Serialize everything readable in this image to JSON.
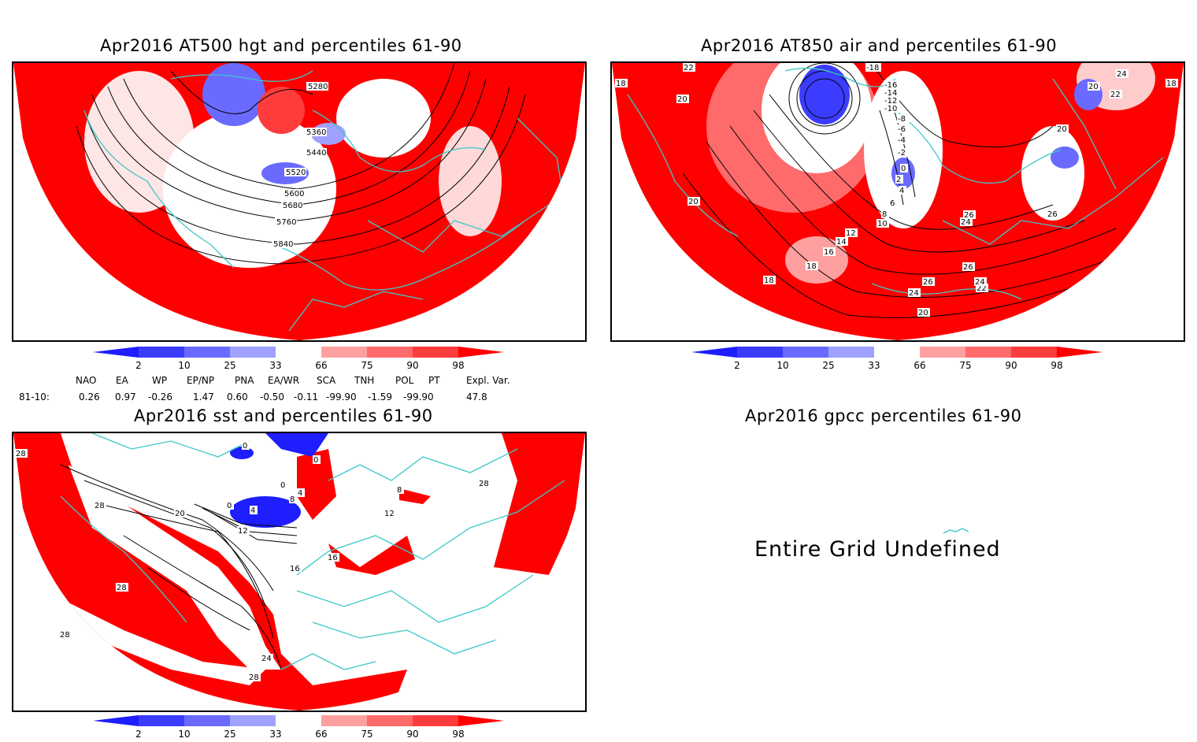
{
  "panels": {
    "hgt": {
      "title": "Apr2016 AT500 hgt and percentiles 61-90",
      "contour_labels": [
        "5280",
        "5360",
        "5440",
        "5520",
        "5600",
        "5680",
        "5760",
        "5840"
      ]
    },
    "air": {
      "title": "Apr2016 AT850 air and percentiles 61-90",
      "contour_labels": [
        "-18",
        "-16",
        "-14",
        "-12",
        "-10",
        "-8",
        "-6",
        "-4",
        "-2",
        "0",
        "2",
        "4",
        "6",
        "8",
        "10",
        "12",
        "14",
        "16",
        "18",
        "18",
        "20",
        "20",
        "20",
        "20",
        "22",
        "22",
        "22",
        "24",
        "24",
        "24",
        "26",
        "26",
        "26",
        "26",
        "18",
        "18",
        "24",
        "20"
      ]
    },
    "sst": {
      "title": "Apr2016 sst and percentiles 61-90",
      "contour_labels": [
        "28",
        "28",
        "28",
        "28",
        "20",
        "4",
        "0",
        "12",
        "16",
        "0",
        "4",
        "8",
        "0",
        "0",
        "16",
        "8",
        "12",
        "24",
        "28",
        "28"
      ]
    },
    "gpcc": {
      "title": "Apr2016 gpcc percentiles 61-90",
      "message": "Entire Grid Undefined"
    }
  },
  "colorbar": {
    "ticks": [
      "2",
      "10",
      "25",
      "33",
      "66",
      "75",
      "90",
      "98"
    ],
    "colors": [
      "#1e1eff",
      "#3c3cff",
      "#6a6aff",
      "#a0a0ff",
      "#ffffff",
      "#ffa0a0",
      "#ff6a6a",
      "#ff3c3c",
      "#ff0000"
    ]
  },
  "indices": {
    "headers": [
      "NAO",
      "EA",
      "WP",
      "EP/NP",
      "PNA",
      "EA/WR",
      "SCA",
      "TNH",
      "POL",
      "PT",
      "Expl. Var."
    ],
    "row_label": "81-10:",
    "values": [
      "0.26",
      "0.97",
      "-0.26",
      "1.47",
      "0.60",
      "-0.50",
      "-0.11",
      "-99.90",
      "-1.59",
      "-99.90",
      "47.8"
    ]
  },
  "colors": {
    "coast": "#3ec8c8",
    "red": "#ff0000",
    "blue": "#2a2aff"
  }
}
